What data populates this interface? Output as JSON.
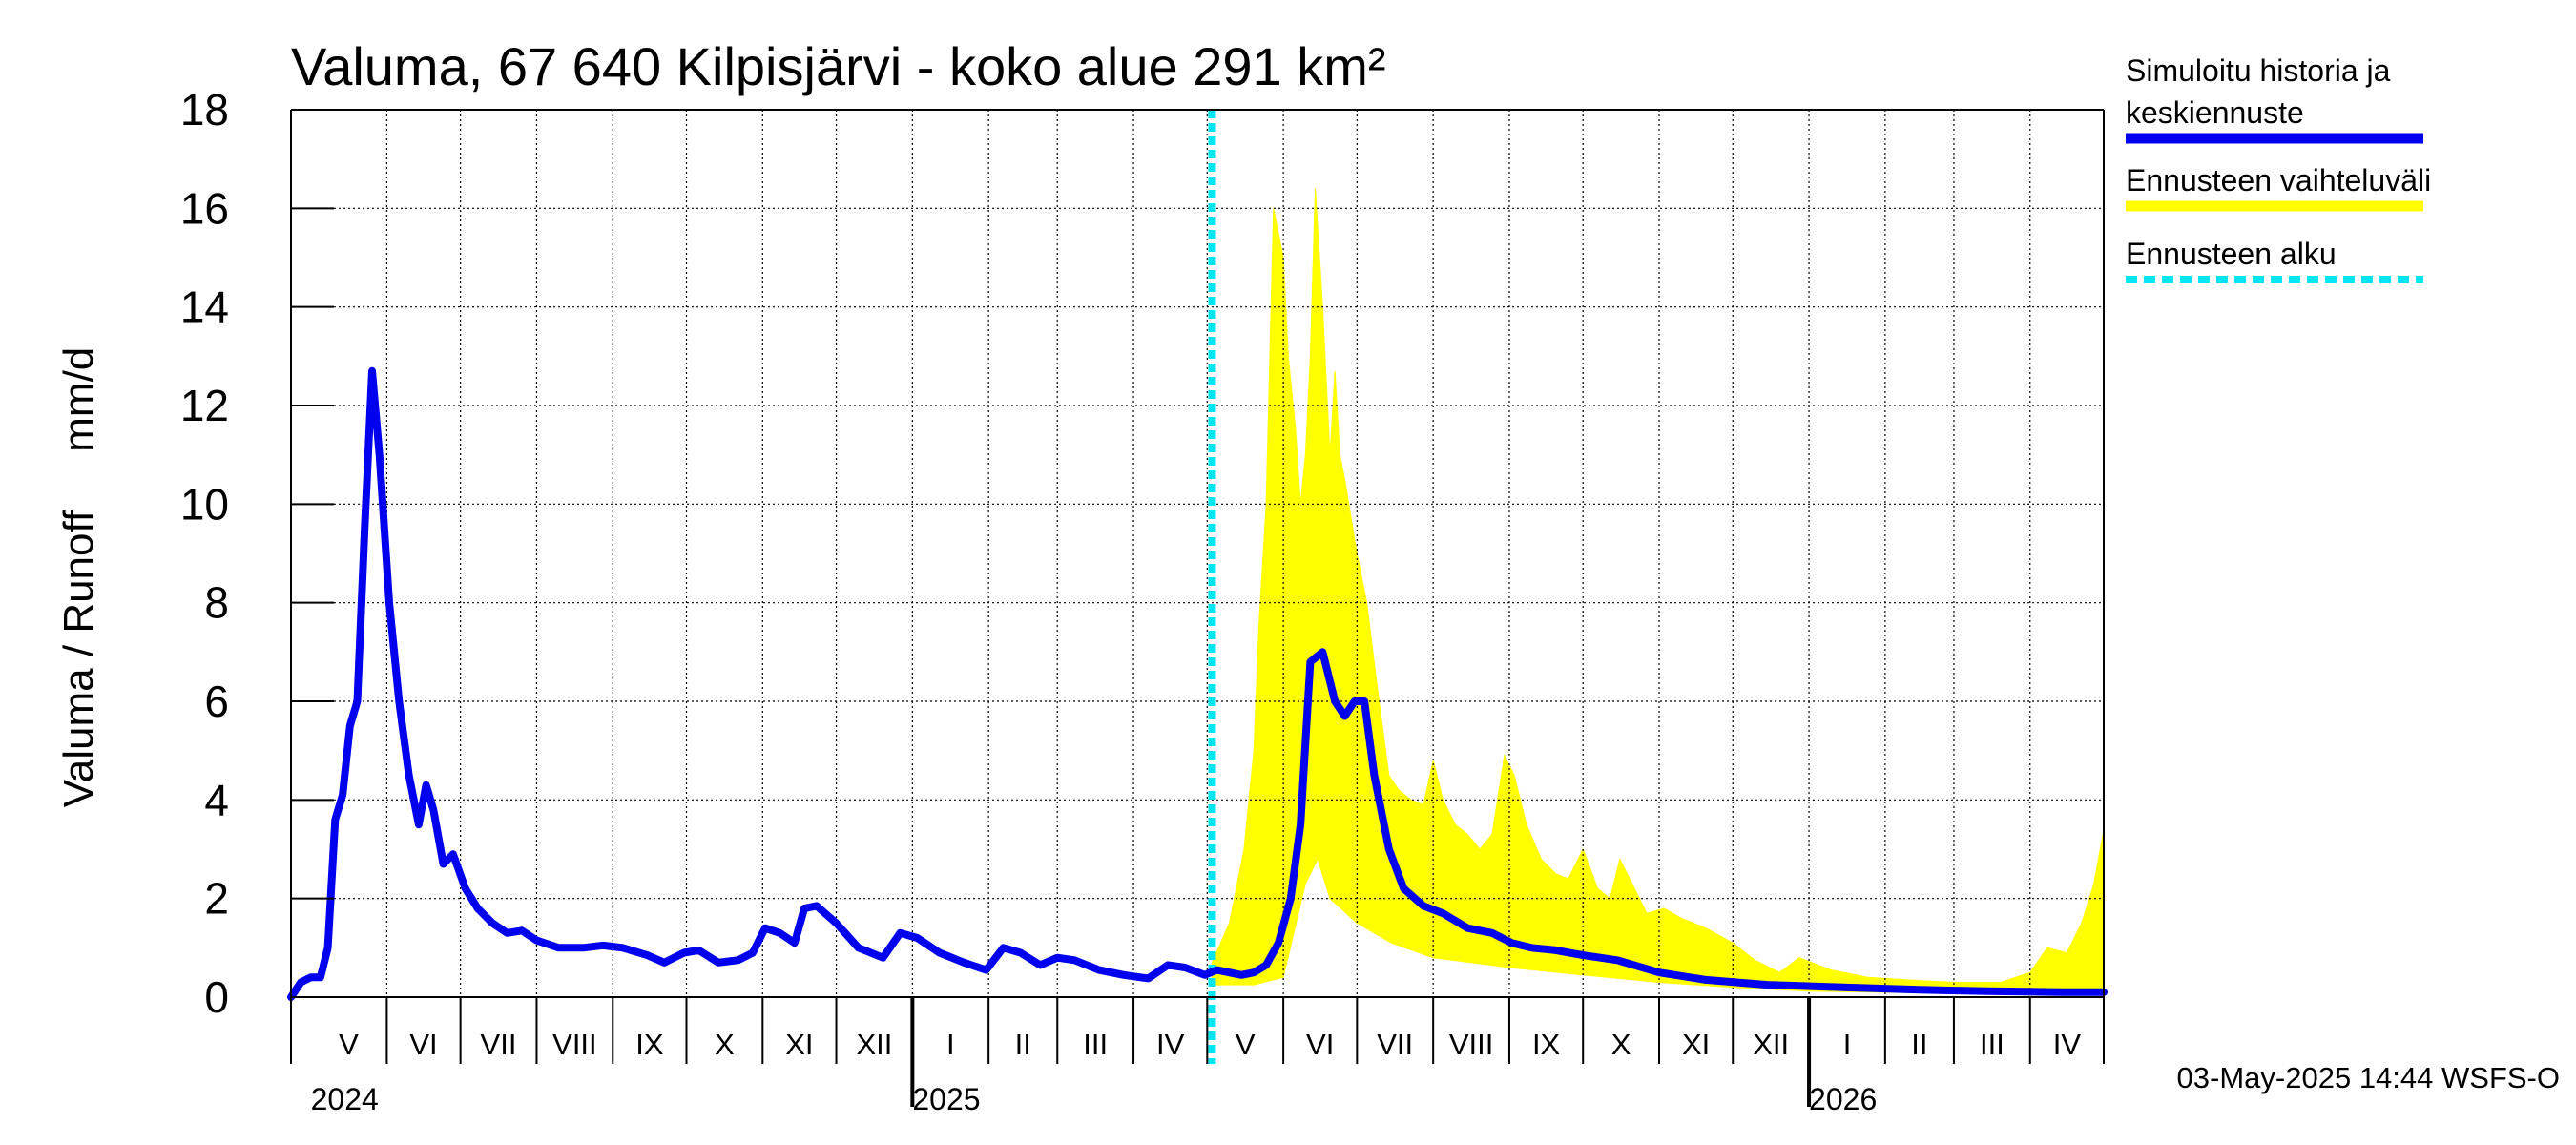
{
  "chart_data": {
    "type": "line",
    "title": "Valuma, 67 640 Kilpisjärvi - koko alue 291 km²",
    "ylabel": "Valuma / Runoff     mm/d",
    "ylim": [
      0,
      18
    ],
    "yticks": [
      "0",
      "2",
      "4",
      "6",
      "8",
      "10",
      "12",
      "14",
      "16",
      "18"
    ],
    "xlim": [
      "2024-04-23",
      "2026-05-01"
    ],
    "grid": true,
    "legend_position": "right",
    "months": [
      {
        "label": "V",
        "start": "2024-05-01",
        "end": "2024-06-01"
      },
      {
        "label": "VI",
        "start": "2024-06-01",
        "end": "2024-07-01"
      },
      {
        "label": "VII",
        "start": "2024-07-01",
        "end": "2024-08-01"
      },
      {
        "label": "VIII",
        "start": "2024-08-01",
        "end": "2024-09-01"
      },
      {
        "label": "IX",
        "start": "2024-09-01",
        "end": "2024-10-01"
      },
      {
        "label": "X",
        "start": "2024-10-01",
        "end": "2024-11-01"
      },
      {
        "label": "XI",
        "start": "2024-11-01",
        "end": "2024-12-01"
      },
      {
        "label": "XII",
        "start": "2024-12-01",
        "end": "2025-01-01"
      },
      {
        "label": "I",
        "start": "2025-01-01",
        "end": "2025-02-01"
      },
      {
        "label": "II",
        "start": "2025-02-01",
        "end": "2025-03-01"
      },
      {
        "label": "III",
        "start": "2025-03-01",
        "end": "2025-04-01"
      },
      {
        "label": "IV",
        "start": "2025-04-01",
        "end": "2025-05-01"
      },
      {
        "label": "V",
        "start": "2025-05-01",
        "end": "2025-06-01"
      },
      {
        "label": "VI",
        "start": "2025-06-01",
        "end": "2025-07-01"
      },
      {
        "label": "VII",
        "start": "2025-07-01",
        "end": "2025-08-01"
      },
      {
        "label": "VIII",
        "start": "2025-08-01",
        "end": "2025-09-01"
      },
      {
        "label": "IX",
        "start": "2025-09-01",
        "end": "2025-10-01"
      },
      {
        "label": "X",
        "start": "2025-10-01",
        "end": "2025-11-01"
      },
      {
        "label": "XI",
        "start": "2025-11-01",
        "end": "2025-12-01"
      },
      {
        "label": "XII",
        "start": "2025-12-01",
        "end": "2026-01-01"
      },
      {
        "label": "I",
        "start": "2026-01-01",
        "end": "2026-02-01"
      },
      {
        "label": "II",
        "start": "2026-02-01",
        "end": "2026-03-01"
      },
      {
        "label": "III",
        "start": "2026-03-01",
        "end": "2026-04-01"
      },
      {
        "label": "IV",
        "start": "2026-04-01",
        "end": "2026-05-01"
      }
    ],
    "years": [
      {
        "label": "2024",
        "date": "2024-05-01"
      },
      {
        "label": "2025",
        "date": "2025-01-01"
      },
      {
        "label": "2026",
        "date": "2026-01-01"
      }
    ],
    "forecast_start": "2025-05-03",
    "series": [
      {
        "name": "Simuloitu historia ja keskiennuste",
        "color": "#0000ee",
        "points": [
          [
            "2024-04-23",
            0.0
          ],
          [
            "2024-04-27",
            0.3
          ],
          [
            "2024-05-01",
            0.4
          ],
          [
            "2024-05-05",
            0.4
          ],
          [
            "2024-05-08",
            1.0
          ],
          [
            "2024-05-11",
            3.6
          ],
          [
            "2024-05-14",
            4.1
          ],
          [
            "2024-05-17",
            5.5
          ],
          [
            "2024-05-20",
            6.0
          ],
          [
            "2024-05-23",
            9.5
          ],
          [
            "2024-05-26",
            12.7
          ],
          [
            "2024-05-29",
            11.0
          ],
          [
            "2024-06-02",
            8.0
          ],
          [
            "2024-06-06",
            6.0
          ],
          [
            "2024-06-10",
            4.5
          ],
          [
            "2024-06-14",
            3.5
          ],
          [
            "2024-06-17",
            4.3
          ],
          [
            "2024-06-20",
            3.8
          ],
          [
            "2024-06-24",
            2.7
          ],
          [
            "2024-06-28",
            2.9
          ],
          [
            "2024-07-03",
            2.2
          ],
          [
            "2024-07-08",
            1.8
          ],
          [
            "2024-07-14",
            1.5
          ],
          [
            "2024-07-20",
            1.3
          ],
          [
            "2024-07-26",
            1.35
          ],
          [
            "2024-08-01",
            1.15
          ],
          [
            "2024-08-10",
            1.0
          ],
          [
            "2024-08-20",
            1.0
          ],
          [
            "2024-08-28",
            1.05
          ],
          [
            "2024-09-05",
            1.0
          ],
          [
            "2024-09-15",
            0.85
          ],
          [
            "2024-09-22",
            0.7
          ],
          [
            "2024-09-30",
            0.9
          ],
          [
            "2024-10-06",
            0.95
          ],
          [
            "2024-10-14",
            0.7
          ],
          [
            "2024-10-22",
            0.75
          ],
          [
            "2024-10-28",
            0.9
          ],
          [
            "2024-11-02",
            1.4
          ],
          [
            "2024-11-08",
            1.3
          ],
          [
            "2024-11-14",
            1.1
          ],
          [
            "2024-11-18",
            1.8
          ],
          [
            "2024-11-23",
            1.85
          ],
          [
            "2024-12-01",
            1.5
          ],
          [
            "2024-12-10",
            1.0
          ],
          [
            "2024-12-20",
            0.8
          ],
          [
            "2024-12-27",
            1.3
          ],
          [
            "2025-01-03",
            1.2
          ],
          [
            "2025-01-12",
            0.9
          ],
          [
            "2025-01-22",
            0.7
          ],
          [
            "2025-01-31",
            0.55
          ],
          [
            "2025-02-07",
            1.0
          ],
          [
            "2025-02-14",
            0.9
          ],
          [
            "2025-02-22",
            0.65
          ],
          [
            "2025-03-01",
            0.8
          ],
          [
            "2025-03-08",
            0.75
          ],
          [
            "2025-03-18",
            0.55
          ],
          [
            "2025-03-28",
            0.45
          ],
          [
            "2025-04-07",
            0.38
          ],
          [
            "2025-04-15",
            0.65
          ],
          [
            "2025-04-22",
            0.6
          ],
          [
            "2025-04-30",
            0.45
          ],
          [
            "2025-05-05",
            0.55
          ],
          [
            "2025-05-10",
            0.5
          ],
          [
            "2025-05-15",
            0.45
          ],
          [
            "2025-05-20",
            0.5
          ],
          [
            "2025-05-25",
            0.65
          ],
          [
            "2025-05-30",
            1.1
          ],
          [
            "2025-06-04",
            2.0
          ],
          [
            "2025-06-08",
            3.5
          ],
          [
            "2025-06-12",
            6.8
          ],
          [
            "2025-06-17",
            7.0
          ],
          [
            "2025-06-22",
            6.0
          ],
          [
            "2025-06-26",
            5.7
          ],
          [
            "2025-06-30",
            6.0
          ],
          [
            "2025-07-04",
            6.0
          ],
          [
            "2025-07-08",
            4.5
          ],
          [
            "2025-07-14",
            3.0
          ],
          [
            "2025-07-20",
            2.2
          ],
          [
            "2025-07-28",
            1.85
          ],
          [
            "2025-08-05",
            1.7
          ],
          [
            "2025-08-15",
            1.4
          ],
          [
            "2025-08-25",
            1.3
          ],
          [
            "2025-09-02",
            1.1
          ],
          [
            "2025-09-10",
            1.0
          ],
          [
            "2025-09-20",
            0.95
          ],
          [
            "2025-10-01",
            0.85
          ],
          [
            "2025-10-15",
            0.75
          ],
          [
            "2025-11-01",
            0.5
          ],
          [
            "2025-11-20",
            0.35
          ],
          [
            "2025-12-15",
            0.25
          ],
          [
            "2026-01-15",
            0.2
          ],
          [
            "2026-02-15",
            0.15
          ],
          [
            "2026-03-15",
            0.12
          ],
          [
            "2026-04-15",
            0.1
          ],
          [
            "2026-05-01",
            0.1
          ]
        ]
      }
    ],
    "band": {
      "name": "Ennusteen vaihteluväli",
      "color": "#ffff00",
      "upper": [
        [
          "2025-05-03",
          0.7
        ],
        [
          "2025-05-10",
          1.5
        ],
        [
          "2025-05-16",
          3.0
        ],
        [
          "2025-05-20",
          5.0
        ],
        [
          "2025-05-22",
          7.5
        ],
        [
          "2025-05-25",
          10.0
        ],
        [
          "2025-05-28",
          16.0
        ],
        [
          "2025-06-01",
          15.0
        ],
        [
          "2025-06-03",
          13.0
        ],
        [
          "2025-06-06",
          11.5
        ],
        [
          "2025-06-08",
          10.0
        ],
        [
          "2025-06-10",
          11.0
        ],
        [
          "2025-06-12",
          13.0
        ],
        [
          "2025-06-14",
          16.4
        ],
        [
          "2025-06-17",
          14.0
        ],
        [
          "2025-06-20",
          11.0
        ],
        [
          "2025-06-22",
          12.7
        ],
        [
          "2025-06-24",
          11.0
        ],
        [
          "2025-06-26",
          10.5
        ],
        [
          "2025-07-01",
          9.0
        ],
        [
          "2025-07-05",
          8.0
        ],
        [
          "2025-07-10",
          6.0
        ],
        [
          "2025-07-14",
          4.5
        ],
        [
          "2025-07-18",
          4.2
        ],
        [
          "2025-07-23",
          4.0
        ],
        [
          "2025-07-28",
          3.9
        ],
        [
          "2025-08-01",
          4.8
        ],
        [
          "2025-08-05",
          4.0
        ],
        [
          "2025-08-10",
          3.5
        ],
        [
          "2025-08-15",
          3.3
        ],
        [
          "2025-08-20",
          3.0
        ],
        [
          "2025-08-25",
          3.3
        ],
        [
          "2025-08-30",
          4.9
        ],
        [
          "2025-09-03",
          4.5
        ],
        [
          "2025-09-08",
          3.5
        ],
        [
          "2025-09-14",
          2.8
        ],
        [
          "2025-09-20",
          2.5
        ],
        [
          "2025-09-25",
          2.4
        ],
        [
          "2025-10-01",
          3.0
        ],
        [
          "2025-10-07",
          2.2
        ],
        [
          "2025-10-12",
          2.0
        ],
        [
          "2025-10-16",
          2.8
        ],
        [
          "2025-10-21",
          2.3
        ],
        [
          "2025-10-27",
          1.7
        ],
        [
          "2025-11-03",
          1.8
        ],
        [
          "2025-11-10",
          1.6
        ],
        [
          "2025-11-20",
          1.4
        ],
        [
          "2025-12-01",
          1.1
        ],
        [
          "2025-12-10",
          0.75
        ],
        [
          "2025-12-20",
          0.5
        ],
        [
          "2025-12-28",
          0.8
        ],
        [
          "2026-01-10",
          0.55
        ],
        [
          "2026-01-25",
          0.4
        ],
        [
          "2026-02-10",
          0.35
        ],
        [
          "2026-03-01",
          0.3
        ],
        [
          "2026-03-20",
          0.3
        ],
        [
          "2026-04-01",
          0.5
        ],
        [
          "2026-04-08",
          1.0
        ],
        [
          "2026-04-16",
          0.9
        ],
        [
          "2026-04-22",
          1.5
        ],
        [
          "2026-04-27",
          2.3
        ],
        [
          "2026-05-01",
          3.4
        ]
      ],
      "lower": [
        [
          "2025-05-03",
          0.25
        ],
        [
          "2025-05-20",
          0.25
        ],
        [
          "2025-06-01",
          0.4
        ],
        [
          "2025-06-10",
          2.3
        ],
        [
          "2025-06-15",
          2.8
        ],
        [
          "2025-06-20",
          2.0
        ],
        [
          "2025-07-01",
          1.5
        ],
        [
          "2025-07-15",
          1.1
        ],
        [
          "2025-08-01",
          0.8
        ],
        [
          "2025-09-01",
          0.6
        ],
        [
          "2025-10-01",
          0.45
        ],
        [
          "2025-11-01",
          0.3
        ],
        [
          "2025-12-01",
          0.2
        ],
        [
          "2026-01-01",
          0.12
        ],
        [
          "2026-03-01",
          0.08
        ],
        [
          "2026-05-01",
          0.06
        ]
      ]
    },
    "legend": [
      {
        "label": "Simuloitu historia ja\nkeskiennuste",
        "color": "#0000ee",
        "style": "solid"
      },
      {
        "label": "Ennusteen vaihteluväli",
        "color": "#ffff00",
        "style": "solid"
      },
      {
        "label": "Ennusteen alku",
        "color": "#00e5ee",
        "style": "dashed"
      }
    ],
    "footer": "03-May-2025 14:44 WSFS-O"
  }
}
